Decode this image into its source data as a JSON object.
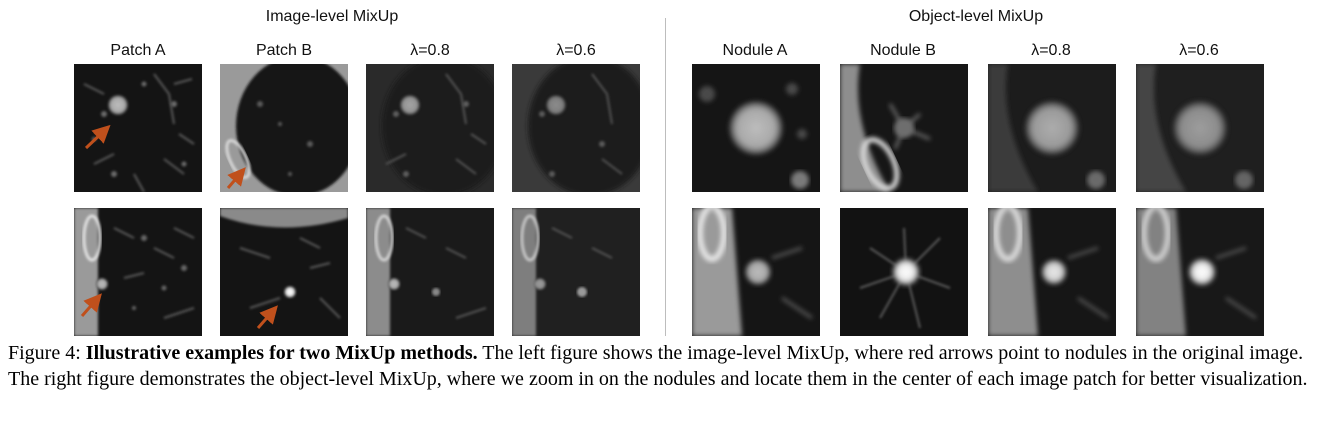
{
  "left_group": {
    "title": "Image-level MixUp",
    "columns": [
      "Patch A",
      "Patch B",
      "λ=0.8",
      "λ=0.6"
    ]
  },
  "right_group": {
    "title": "Object-level MixUp",
    "columns": [
      "Nodule A",
      "Nodule B",
      "λ=0.8",
      "λ=0.6"
    ]
  },
  "caption": {
    "label": "Figure 4:",
    "bold": "Illustrative examples for two MixUp methods.",
    "text": "The left figure shows the image-level MixUp, where red arrows point to nodules in the original image. The right figure demonstrates the object-level MixUp, where we zoom in on the nodules and locate them in the center of each image patch for better visualization."
  },
  "colors": {
    "arrow": "#c0501c",
    "divider": "#bdbdbd"
  }
}
